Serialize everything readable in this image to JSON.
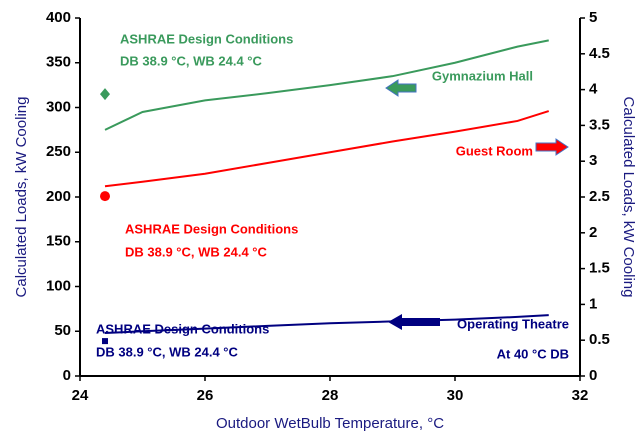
{
  "chart_data": {
    "type": "line",
    "xlabel": "Outdoor WetBulb Temperature, °C",
    "ylabel": "Calculated Loads, kW Cooling",
    "y2label": "Calculated Loads, kW Cooling",
    "x": [
      24.4,
      25,
      26,
      27,
      28,
      29,
      30,
      31,
      31.5
    ],
    "xlim": [
      24,
      32
    ],
    "xticks": [
      24,
      26,
      28,
      30,
      32
    ],
    "ylim": [
      0,
      400
    ],
    "yticks": [
      0,
      50,
      100,
      150,
      200,
      250,
      300,
      350,
      400
    ],
    "y2lim": [
      0,
      5
    ],
    "y2ticks": [
      0,
      0.5,
      1,
      1.5,
      2,
      2.5,
      3,
      3.5,
      4,
      4.5,
      5
    ],
    "series": [
      {
        "name": "Gymnazium Hall",
        "color": "#3a9a5c",
        "values": [
          275,
          295,
          308,
          316,
          325,
          335,
          350,
          368,
          375
        ]
      },
      {
        "name": "Guest Room",
        "color": "#ff0000",
        "values": [
          212,
          217,
          226,
          238,
          250,
          262,
          273,
          285,
          296
        ]
      },
      {
        "name": "Operating Theatre",
        "color": "#000080",
        "values": [
          48,
          50,
          53,
          56,
          59,
          61,
          63,
          66,
          68
        ]
      }
    ],
    "points": [
      {
        "shape": "diamond",
        "color": "#3a9a5c",
        "x": 24.4,
        "y": 315
      },
      {
        "shape": "circle",
        "color": "#ff0000",
        "x": 24.4,
        "y": 201
      },
      {
        "shape": "square",
        "color": "#000080",
        "x": 24.4,
        "y": 39
      }
    ],
    "annotations": [
      {
        "text": "ASHRAE Design Conditions",
        "color": "#3a9a5c"
      },
      {
        "text": "DB 38.9 °C, WB 24.4 °C",
        "color": "#3a9a5c"
      },
      {
        "text": "Gymnazium Hall",
        "color": "#3a9a5c"
      },
      {
        "text": "ASHRAE Design Conditions",
        "color": "#ff0000"
      },
      {
        "text": "DB 38.9 °C, WB 24.4 °C",
        "color": "#ff0000"
      },
      {
        "text": "Guest Room",
        "color": "#ff0000"
      },
      {
        "text": "ASHRAE Design Conditions",
        "color": "#000080"
      },
      {
        "text": "DB 38.9 °C, WB 24.4 °C",
        "color": "#000080"
      },
      {
        "text": "Operating Theatre",
        "color": "#000080"
      },
      {
        "text": "At 40 °C DB",
        "color": "#000080"
      }
    ]
  }
}
